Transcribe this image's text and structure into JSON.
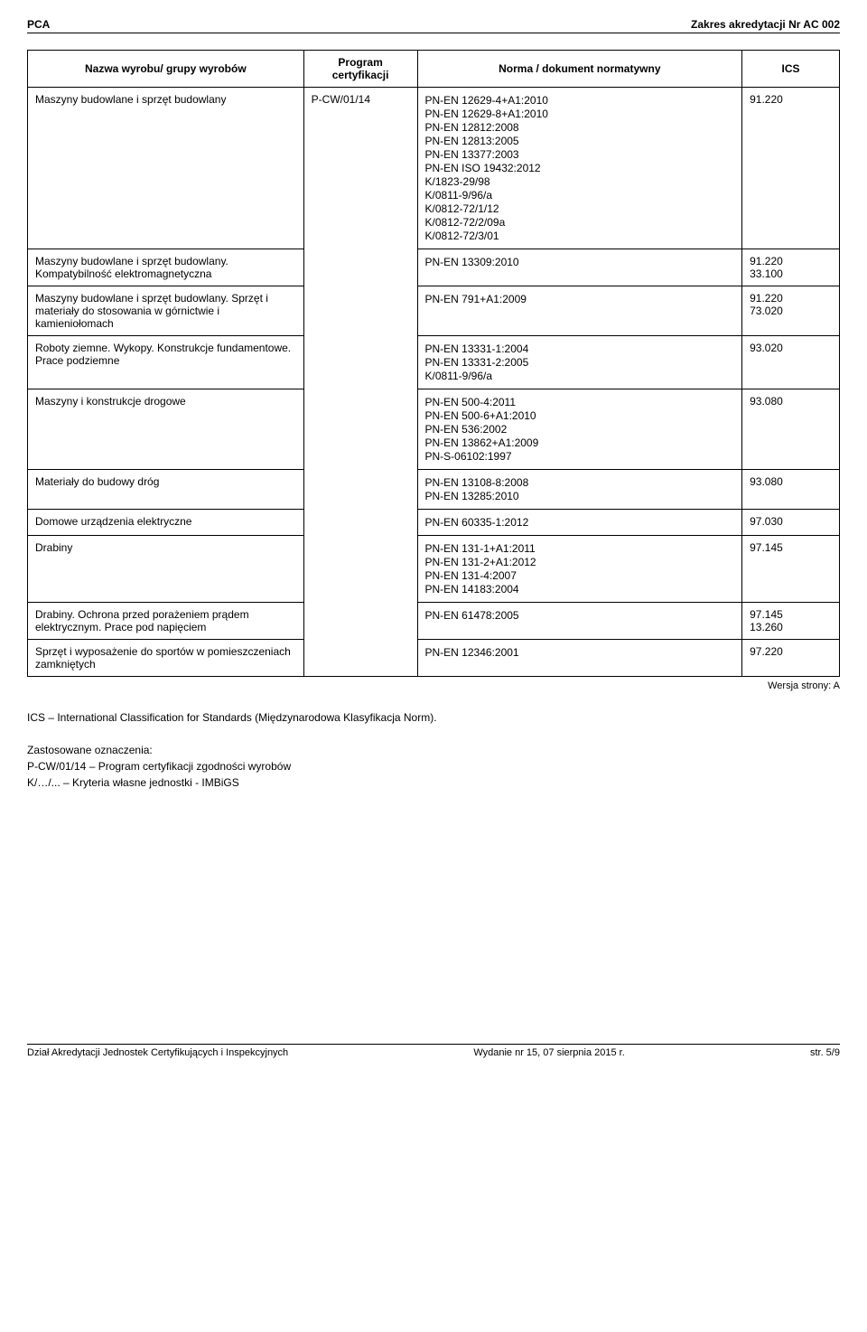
{
  "header": {
    "left": "PCA",
    "right": "Zakres akredytacji Nr AC 002"
  },
  "table": {
    "headers": {
      "col1": "Nazwa wyrobu/ grupy wyrobów",
      "col2": "Program certyfikacji",
      "col3": "Norma / dokument normatywny",
      "col4": "ICS"
    },
    "program": "P-CW/01/14",
    "rows": [
      {
        "name": "Maszyny budowlane i sprzęt budowlany",
        "norms": [
          "PN-EN 12629-4+A1:2010",
          "PN-EN 12629-8+A1:2010",
          "PN-EN 12812:2008",
          "PN-EN 12813:2005",
          "PN-EN 13377:2003",
          "PN-EN ISO 19432:2012",
          "K/1823-29/98",
          "K/0811-9/96/a",
          "K/0812-72/1/12",
          "K/0812-72/2/09a",
          "K/0812-72/3/01"
        ],
        "ics": [
          "91.220"
        ]
      },
      {
        "name": "Maszyny budowlane i sprzęt budowlany. Kompatybilność elektromagnetyczna",
        "norms": [
          "PN-EN 13309:2010"
        ],
        "ics": [
          "91.220",
          "33.100"
        ]
      },
      {
        "name": "Maszyny budowlane i sprzęt budowlany.\nSprzęt i materiały do stosowania w górnictwie i kamieniołomach",
        "norms": [
          "PN-EN 791+A1:2009"
        ],
        "ics": [
          "91.220",
          "73.020"
        ]
      },
      {
        "name": "Roboty ziemne. Wykopy. Konstrukcje fundamentowe. Prace podziemne",
        "norms": [
          "PN-EN 13331-1:2004",
          "PN-EN 13331-2:2005",
          "K/0811-9/96/a"
        ],
        "ics": [
          "93.020"
        ]
      },
      {
        "name": "Maszyny i konstrukcje drogowe",
        "norms": [
          "PN-EN 500-4:2011",
          "PN-EN 500-6+A1:2010",
          "PN-EN 536:2002",
          "PN-EN 13862+A1:2009",
          "PN-S-06102:1997"
        ],
        "ics": [
          "93.080"
        ]
      },
      {
        "name": "Materiały do budowy dróg",
        "norms": [
          "PN-EN 13108-8:2008",
          "PN-EN 13285:2010"
        ],
        "ics": [
          "93.080"
        ]
      },
      {
        "name": "Domowe urządzenia elektryczne",
        "norms": [
          "PN-EN 60335-1:2012"
        ],
        "ics": [
          "97.030"
        ]
      },
      {
        "name": "Drabiny",
        "norms": [
          "PN-EN 131-1+A1:2011",
          "PN-EN 131-2+A1:2012",
          "PN-EN 131-4:2007",
          "PN-EN 14183:2004"
        ],
        "ics": [
          "97.145"
        ]
      },
      {
        "name": "Drabiny. Ochrona przed porażeniem prądem elektrycznym. Prace pod napięciem",
        "norms": [
          "PN-EN 61478:2005"
        ],
        "ics": [
          "97.145",
          "13.260"
        ]
      },
      {
        "name": "Sprzęt i wyposażenie do sportów w pomieszczeniach zamkniętych",
        "norms": [
          "PN-EN 12346:2001"
        ],
        "ics": [
          "97.220"
        ]
      }
    ]
  },
  "version_label": "Wersja strony: A",
  "notes": {
    "ics_explain": "ICS – International Classification for Standards (Międzynarodowa Klasyfikacja Norm).",
    "oz_heading": "Zastosowane oznaczenia:",
    "pcw": "P-CW/01/14 – Program certyfikacji zgodności wyrobów",
    "k": "K/…/... – Kryteria własne jednostki - IMBiGS"
  },
  "footer": {
    "left": "Dział Akredytacji Jednostek Certyfikujących i Inspekcyjnych",
    "center": "Wydanie nr 15, 07 sierpnia 2015 r.",
    "right": "str. 5/9"
  }
}
